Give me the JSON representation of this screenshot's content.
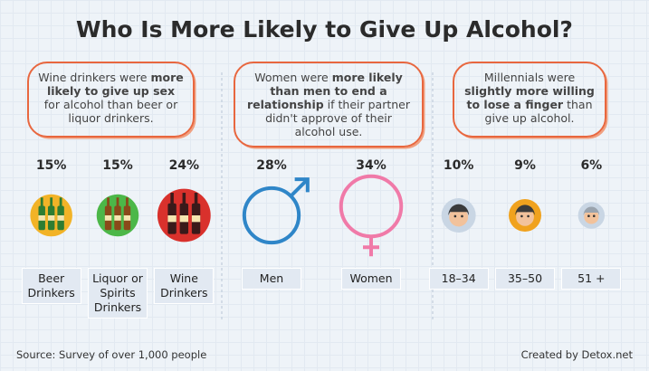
{
  "title": "Who Is More Likely to Give Up Alcohol?",
  "panels": [
    {
      "text": [
        {
          "text": "Wine drinkers were ",
          "bold": false
        },
        {
          "text": "more likely to give up sex",
          "bold": true
        },
        {
          "text": " for alcohol than beer or liquor drinkers.",
          "bold": false
        }
      ],
      "items": [
        {
          "label": "Beer Drinkers",
          "value": 15,
          "value_label": "15%",
          "color": "#f2b327"
        },
        {
          "label": "Liquor or Spirits Drinkers",
          "value": 15,
          "value_label": "15%",
          "color": "#4cb748"
        },
        {
          "label": "Wine Drinkers",
          "value": 24,
          "value_label": "24%",
          "color": "#d9312c"
        }
      ]
    },
    {
      "text": [
        {
          "text": "Women were ",
          "bold": false
        },
        {
          "text": "more likely than men to end a relationship",
          "bold": true
        },
        {
          "text": " if their partner didn't approve of their alcohol use.",
          "bold": false
        }
      ],
      "items": [
        {
          "label": "Men",
          "value": 28,
          "value_label": "28%",
          "color": "#2f86c8"
        },
        {
          "label": "Women",
          "value": 34,
          "value_label": "34%",
          "color": "#f07aa8"
        }
      ]
    },
    {
      "text": [
        {
          "text": "Millennials were ",
          "bold": false
        },
        {
          "text": "slightly more willing to lose a finger",
          "bold": true
        },
        {
          "text": " than give up alcohol.",
          "bold": false
        }
      ],
      "items": [
        {
          "label": "18–34",
          "value": 10,
          "value_label": "10%",
          "color": "#c9d6e4"
        },
        {
          "label": "35–50",
          "value": 9,
          "value_label": "9%",
          "color": "#f0a21e"
        },
        {
          "label": "51 +",
          "value": 6,
          "value_label": "6%",
          "color": "#c9d6e4"
        }
      ]
    }
  ],
  "source": "Source: Survey of over 1,000 people",
  "credit": "Created by Detox.net"
}
